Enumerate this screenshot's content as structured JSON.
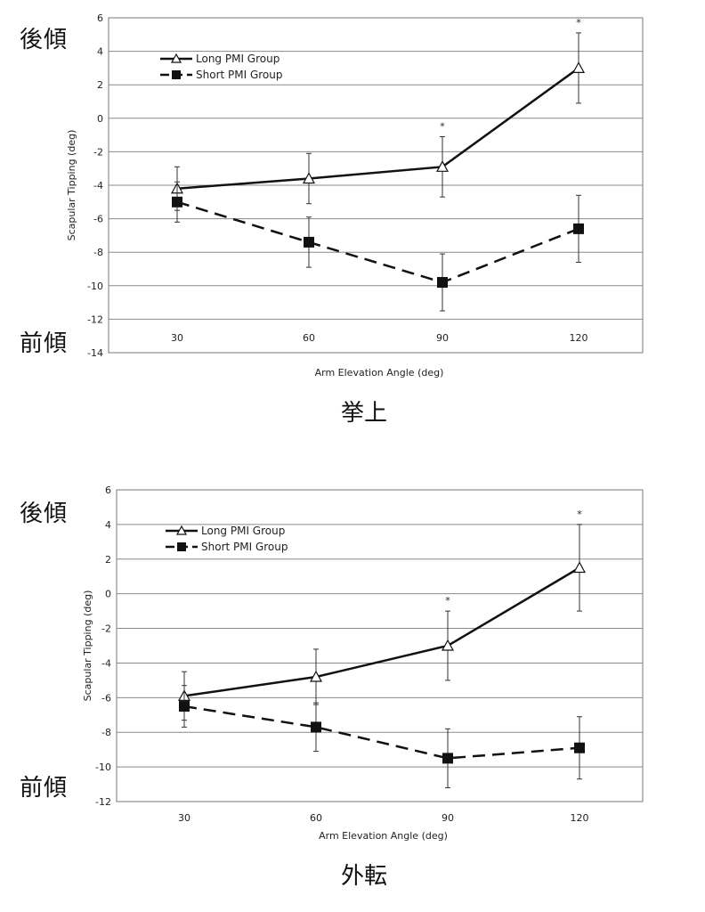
{
  "labels": {
    "top_chart": {
      "upper": "後傾",
      "lower": "前傾",
      "caption": "挙上"
    },
    "bottom_chart": {
      "upper": "後傾",
      "lower": "前傾",
      "caption": "外転"
    }
  },
  "chart_data": [
    {
      "type": "line",
      "title": "",
      "xlabel": "Arm Elevation Angle (deg)",
      "ylabel": "Scapular Tipping (deg)",
      "categories": [
        "30",
        "60",
        "90",
        "120"
      ],
      "ylim": [
        -14,
        6
      ],
      "yticks": [
        6,
        4,
        2,
        0,
        -2,
        -4,
        -6,
        -8,
        -10,
        -12,
        -14
      ],
      "grid": true,
      "legend": "top-left",
      "series": [
        {
          "name": "Long PMI Group",
          "marker": "triangle-open",
          "line": "solid",
          "values": [
            -4.2,
            -3.6,
            -2.9,
            3.0
          ],
          "err": [
            1.3,
            1.5,
            1.8,
            2.1
          ]
        },
        {
          "name": "Short PMI Group",
          "marker": "square-filled",
          "line": "dashed",
          "values": [
            -5.0,
            -7.4,
            -9.8,
            -6.6
          ],
          "err": [
            1.2,
            1.5,
            1.7,
            2.0
          ]
        }
      ],
      "significance": [
        "",
        "",
        "*",
        "*"
      ]
    },
    {
      "type": "line",
      "title": "",
      "xlabel": "Arm Elevation Angle (deg)",
      "ylabel": "Scapular Tipping (deg)",
      "categories": [
        "30",
        "60",
        "90",
        "120"
      ],
      "ylim": [
        -12,
        6
      ],
      "yticks": [
        6,
        4,
        2,
        0,
        -2,
        -4,
        -6,
        -8,
        -10,
        -12
      ],
      "grid": true,
      "legend": "top-left",
      "series": [
        {
          "name": "Long PMI Group",
          "marker": "triangle-open",
          "line": "solid",
          "values": [
            -5.9,
            -4.8,
            -3.0,
            1.5
          ],
          "err": [
            1.4,
            1.6,
            2.0,
            2.5
          ]
        },
        {
          "name": "Short PMI Group",
          "marker": "square-filled",
          "line": "dashed",
          "values": [
            -6.5,
            -7.7,
            -9.5,
            -8.9
          ],
          "err": [
            1.2,
            1.4,
            1.7,
            1.8
          ]
        }
      ],
      "significance": [
        "",
        "",
        "*",
        "*"
      ]
    }
  ]
}
